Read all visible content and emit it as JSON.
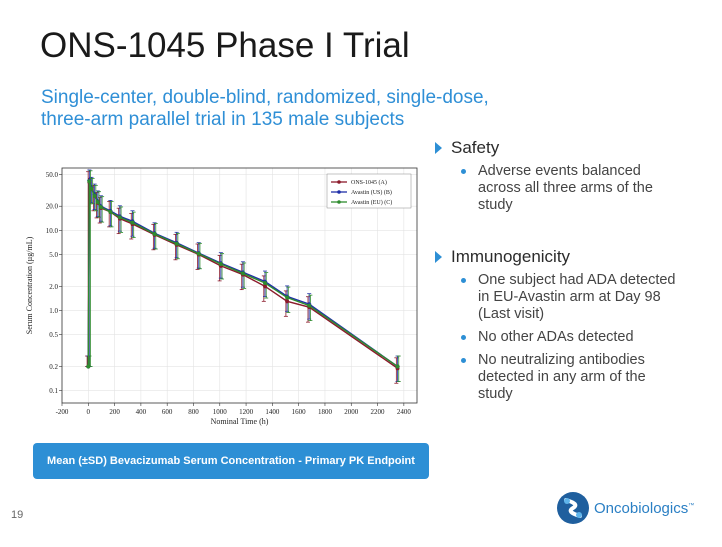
{
  "slide": {
    "title": "ONS-1045 Phase I Trial",
    "subtitle_line1": "Single-center, double-blind, randomized, single-dose,",
    "subtitle_line2": "three-arm parallel trial in 135 male subjects",
    "caption": "Mean (±SD) Bevacizumab Serum Concentration - Primary PK Endpoint",
    "page_number": "19",
    "logo_text": "Oncobiologics",
    "logo_tm": "™"
  },
  "bullets": {
    "safety": {
      "heading": "Safety",
      "items": [
        "Adverse events balanced across all three arms of the study"
      ]
    },
    "immunogenicity": {
      "heading": "Immunogenicity",
      "items": [
        "One subject had ADA detected in EU-Avastin arm at Day 98 (Last visit)",
        "No other ADAs detected",
        "No neutralizing antibodies detected in any arm of the study"
      ]
    }
  },
  "colors": {
    "accent": "#2d8fd5",
    "series_a": "#8b1a2b",
    "series_b": "#1f2fa8",
    "series_c": "#2e8b2e"
  },
  "chart_data": {
    "type": "line",
    "xlabel": "Nominal Time (h)",
    "ylabel": "Serum Concentration (µg/mL)",
    "xlim": [
      -200,
      2500
    ],
    "ylim": [
      0.07,
      60
    ],
    "yscale": "log",
    "xticks": [
      -200,
      0,
      200,
      400,
      600,
      800,
      1000,
      1200,
      1400,
      1600,
      1800,
      2000,
      2200,
      2400
    ],
    "yticks": [
      0.1,
      0.2,
      0.5,
      1.0,
      2.0,
      5.0,
      10.0,
      20.0,
      50.0
    ],
    "ytick_labels": [
      "0.1",
      "0.2",
      "0.5",
      "1.0",
      "2.0",
      "5.0",
      "10.0",
      "20.0",
      "50.0"
    ],
    "grid": true,
    "legend_position": "top-right",
    "x": [
      0,
      8,
      24,
      48,
      72,
      96,
      168,
      240,
      336,
      504,
      672,
      840,
      1008,
      1176,
      1344,
      1512,
      1680,
      2352
    ],
    "series": [
      {
        "name": "ONS-1045 (A)",
        "values": [
          0.2,
          40,
          33,
          27,
          22,
          19,
          17,
          14,
          12,
          8.8,
          6.6,
          5.0,
          3.6,
          2.8,
          2.0,
          1.3,
          1.1,
          0.19
        ]
      },
      {
        "name": "Avastin (US) (B)",
        "values": [
          0.2,
          42,
          34,
          28,
          23,
          20,
          17.5,
          15,
          13,
          9.2,
          7.0,
          5.2,
          3.9,
          3.0,
          2.3,
          1.5,
          1.2,
          0.2
        ]
      },
      {
        "name": "Avastin (EU) (C)",
        "values": [
          0.2,
          41,
          33,
          27,
          22.5,
          19.5,
          17,
          14.5,
          12.5,
          9.0,
          6.8,
          5.1,
          3.8,
          2.9,
          2.2,
          1.45,
          1.15,
          0.2
        ]
      }
    ],
    "error_sd_fraction": 0.35
  }
}
